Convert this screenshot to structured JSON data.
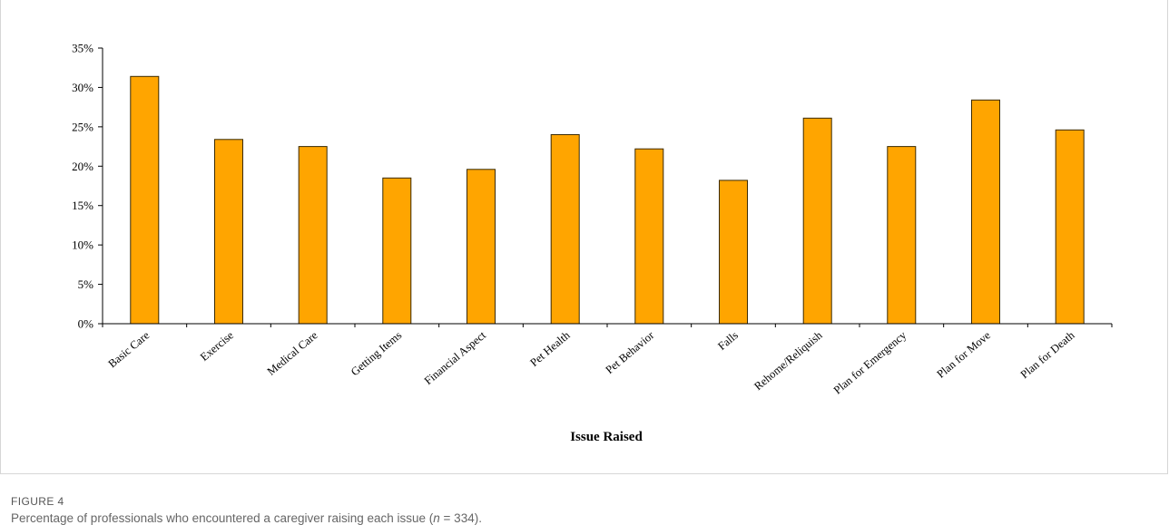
{
  "figure": {
    "label": "FIGURE 4",
    "caption_before": "Percentage of professionals who encountered a caregiver raising each issue (",
    "caption_n": "n",
    "caption_after": " = 334)."
  },
  "colors": {
    "bar_fill": "#FFA500",
    "bar_stroke": "#3a2a00",
    "axis": "#000000"
  },
  "chart_data": {
    "type": "bar",
    "xlabel": "Issue Raised",
    "ylabel": "",
    "ylim": [
      0,
      35
    ],
    "yticks": [
      0,
      5,
      10,
      15,
      20,
      25,
      30,
      35
    ],
    "ytick_labels": [
      "0%",
      "5%",
      "10%",
      "15%",
      "20%",
      "25%",
      "30%",
      "35%"
    ],
    "categories": [
      "Basic Care",
      "Exercise",
      "Medical Care",
      "Getting Items",
      "Financial Aspect",
      "Pet Health",
      "Pet Behavior",
      "Falls",
      "Rehome/Reliquish",
      "Plan for Emergency",
      "Plan for Move",
      "Plan for Death"
    ],
    "values": [
      31.4,
      23.4,
      22.5,
      18.5,
      19.6,
      24.0,
      22.2,
      18.2,
      26.1,
      22.5,
      28.4,
      24.6
    ],
    "grid": false,
    "legend": false
  }
}
